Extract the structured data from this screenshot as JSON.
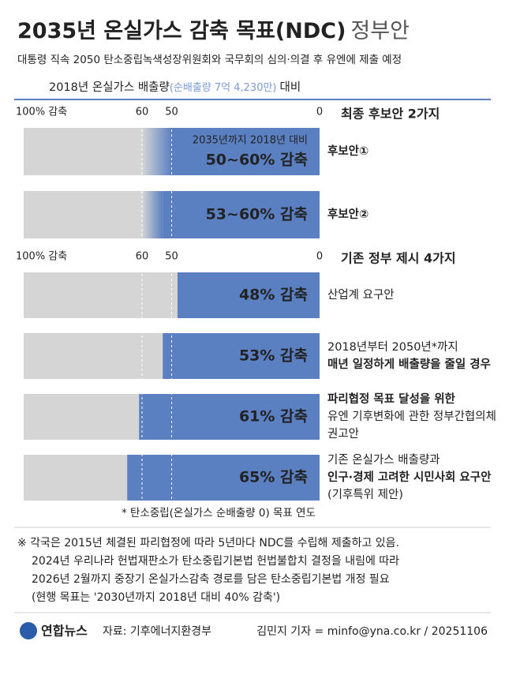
{
  "header": {
    "title": "2035년 온실가스 감축 목표(NDC)",
    "title_suffix": "정부안",
    "subtitle": "대통령 직속 2050 탄소중립녹색성장위원회와 국무회의 심의·의결 후 유엔에 제출 예정",
    "basis": "2018년 온실가스 배출량",
    "basis_note": "(순배출량 7억 4,230만)",
    "basis_suffix": "대비"
  },
  "chart_data": [
    {
      "type": "range-bar",
      "heading": "최종 후보안 2가지",
      "color": "#5b80c2",
      "background": "#d5d5d5",
      "xlim": [
        100,
        0
      ],
      "xticks": [
        {
          "value": 100,
          "label": "100% 감축"
        },
        60,
        50,
        0
      ],
      "annotation": "2035년까지 2018년 대비",
      "categories": [
        [
          "후보안①"
        ],
        [
          "후보안②"
        ]
      ],
      "low": [
        50,
        53
      ],
      "high": [
        60,
        60
      ],
      "value_labels": [
        "50~60% 감축",
        "53~60% 감축"
      ]
    },
    {
      "type": "bar",
      "heading": "기존 정부 제시 4가지",
      "color": "#5b80c2",
      "background": "#d5d5d5",
      "xlim": [
        100,
        0
      ],
      "xticks": [
        {
          "value": 100,
          "label": "100% 감축"
        },
        60,
        50,
        0
      ],
      "categories": [
        [
          "산업계 요구안"
        ],
        [
          "2018년부터 2050년*까지",
          "매년 일정하게 배출량을 줄일 경우"
        ],
        [
          "파리협정 목표 달성을 위한",
          "유엔 기후변화에 관한 정부간협의체",
          "권고안"
        ],
        [
          "기존 온실가스 배출량과",
          "인구·경제 고려한 시민사회 요구안",
          "(기후특위 제안)"
        ]
      ],
      "values": [
        48,
        53,
        61,
        65
      ],
      "value_labels": [
        "48% 감축",
        "53% 감축",
        "61% 감축",
        "65% 감축"
      ]
    }
  ],
  "footnote": "* 탄소중립(온실가스 순배출량 0) 목표 연도",
  "notes": [
    "※ 각국은 2015년 체결된 파리협정에 따라 5년마다 NDC를 수립해 제출하고 있음.",
    "2024년 우리나라 헌법재판소가 탄소중립기본법 헌법불합치 결정을 내림에 따라",
    "2026년 2월까지 중장기 온실가스감축 경로를 담은 탄소중립기본법 개정 필요",
    "(현행 목표는 '2030년까지 2018년 대비 40% 감축')"
  ],
  "footer": {
    "logo": "연합뉴스",
    "source": "자료: 기후에너지환경부",
    "credit": "김민지 기자 = minfo@yna.co.kr / 20251106"
  }
}
